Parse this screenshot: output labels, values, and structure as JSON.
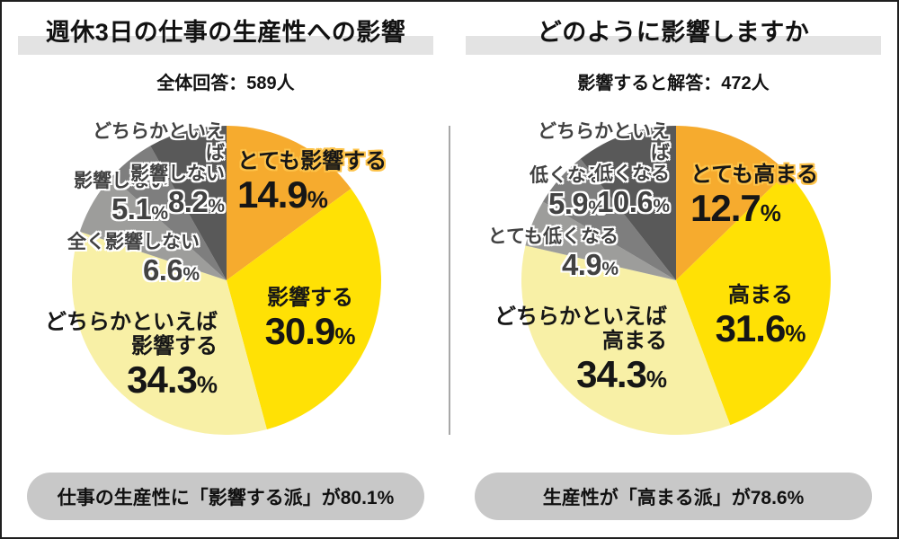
{
  "ui": {
    "percent_sign": "%"
  },
  "colors": {
    "accent_orange": "#F6AB2E",
    "accent_yellow": "#FFE105",
    "accent_light_yellow": "#F8F0A6",
    "gray_dark": "#595959",
    "gray_mid": "#7E7E7E",
    "gray_light": "#9D9D9B",
    "title_band": "#E3E3E3",
    "callout_pill": "#C8C8C8",
    "divider": "#A8A8A8"
  },
  "chart_data": [
    {
      "type": "pie",
      "title": "週休3日の仕事の生産性への影響",
      "subtitle_total": "全体回答：589人",
      "start_angle_deg": 0,
      "direction": "clockwise",
      "legend_position": "on-slice",
      "slices": [
        {
          "label": "とても影響する",
          "label_lines": [
            "とても影響する"
          ],
          "value": 14.9,
          "pct": "14.9",
          "color": "#F6AB2E"
        },
        {
          "label": "影響する",
          "label_lines": [
            "影響する"
          ],
          "value": 30.9,
          "pct": "30.9",
          "color": "#FFE105"
        },
        {
          "label": "どちらかといえば影響する",
          "label_lines": [
            "どちらかといえば",
            "影響する"
          ],
          "value": 34.3,
          "pct": "34.3",
          "color": "#F8F0A6"
        },
        {
          "label": "全く影響しない",
          "label_lines": [
            "全く影響しない"
          ],
          "value": 6.6,
          "pct": "6.6",
          "color": "#9D9D9B"
        },
        {
          "label": "影響しない",
          "label_lines": [
            "影響しない"
          ],
          "value": 5.1,
          "pct": "5.1",
          "color": "#7E7E7E"
        },
        {
          "label": "どちらかといえば影響しない",
          "label_lines": [
            "どちらかといえば",
            "影響しない"
          ],
          "value": 8.2,
          "pct": "8.2",
          "color": "#595959"
        }
      ],
      "callout": "仕事の生産性に「影響する派」が80.1%"
    },
    {
      "type": "pie",
      "title": "どのように影響しますか",
      "subtitle_total": "影響すると解答：472人",
      "start_angle_deg": 0,
      "direction": "clockwise",
      "legend_position": "on-slice",
      "slices": [
        {
          "label": "とても高まる",
          "label_lines": [
            "とても高まる"
          ],
          "value": 12.7,
          "pct": "12.7",
          "color": "#F6AB2E"
        },
        {
          "label": "高まる",
          "label_lines": [
            "高まる"
          ],
          "value": 31.6,
          "pct": "31.6",
          "color": "#FFE105"
        },
        {
          "label": "どちらかといえば高まる",
          "label_lines": [
            "どちらかといえば",
            "高まる"
          ],
          "value": 34.3,
          "pct": "34.3",
          "color": "#F8F0A6"
        },
        {
          "label": "とても低くなる",
          "label_lines": [
            "とても低くなる"
          ],
          "value": 4.9,
          "pct": "4.9",
          "color": "#9D9D9B"
        },
        {
          "label": "低くなる",
          "label_lines": [
            "低くなる"
          ],
          "value": 5.9,
          "pct": "5.9",
          "color": "#7E7E7E"
        },
        {
          "label": "どちらかといえば低くなる",
          "label_lines": [
            "どちらかといえば",
            "低くなる"
          ],
          "value": 10.6,
          "pct": "10.6",
          "color": "#595959"
        }
      ],
      "callout": "生産性が「高まる派」が78.6%"
    }
  ]
}
